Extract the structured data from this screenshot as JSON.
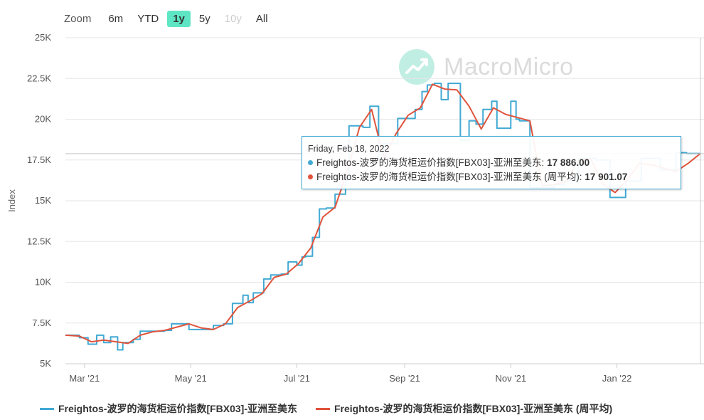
{
  "zoom": {
    "label": "Zoom",
    "options": [
      {
        "label": "6m",
        "state": "normal"
      },
      {
        "label": "YTD",
        "state": "normal"
      },
      {
        "label": "1y",
        "state": "active"
      },
      {
        "label": "5y",
        "state": "normal"
      },
      {
        "label": "10y",
        "state": "disabled"
      },
      {
        "label": "All",
        "state": "normal"
      }
    ]
  },
  "watermark": {
    "text": "MacroMicro"
  },
  "tooltip": {
    "date": "Friday, Feb 18, 2022",
    "rows": [
      {
        "name": "Freightos-波罗的海货柜运价指数[FBX03]-亚洲至美东",
        "value": "17 886.00",
        "color": "#41a9d3"
      },
      {
        "name": "Freightos-波罗的海货柜运价指数[FBX03]-亚洲至美东 (周平均)",
        "value": "17 901.07",
        "color": "#e0533c"
      }
    ]
  },
  "chart_data": {
    "type": "line",
    "title": "",
    "xlabel": "",
    "ylabel": "Index",
    "xlim": [
      "2021-02-18",
      "2022-02-18"
    ],
    "ylim": [
      5000,
      25000
    ],
    "grid": true,
    "legend_position": "bottom",
    "x_ticks": [
      {
        "date": "2021-03-01",
        "label": "Mar '21"
      },
      {
        "date": "2021-05-01",
        "label": "May '21"
      },
      {
        "date": "2021-07-01",
        "label": "Jul '21"
      },
      {
        "date": "2021-09-01",
        "label": "Sep '21"
      },
      {
        "date": "2021-11-01",
        "label": "Nov '21"
      },
      {
        "date": "2022-01-01",
        "label": "Jan '22"
      }
    ],
    "y_ticks": [
      {
        "value": 5000,
        "label": "5K"
      },
      {
        "value": 7500,
        "label": "7.5K"
      },
      {
        "value": 10000,
        "label": "10K"
      },
      {
        "value": 12500,
        "label": "12.5K"
      },
      {
        "value": 15000,
        "label": "15K"
      },
      {
        "value": 17500,
        "label": "17.5K"
      },
      {
        "value": 20000,
        "label": "20K"
      },
      {
        "value": 22500,
        "label": "22.5K"
      },
      {
        "value": 25000,
        "label": "25K"
      }
    ],
    "series": [
      {
        "name": "Freightos-波罗的海货柜运价指数[FBX03]-亚洲至美东",
        "color": "#41a9d3",
        "step": true,
        "points": [
          [
            "2021-02-18",
            6750
          ],
          [
            "2021-02-26",
            6600
          ],
          [
            "2021-03-03",
            6200
          ],
          [
            "2021-03-08",
            6750
          ],
          [
            "2021-03-12",
            6300
          ],
          [
            "2021-03-16",
            6650
          ],
          [
            "2021-03-20",
            5850
          ],
          [
            "2021-03-23",
            6300
          ],
          [
            "2021-03-29",
            6500
          ],
          [
            "2021-04-02",
            7000
          ],
          [
            "2021-04-16",
            7050
          ],
          [
            "2021-04-20",
            7450
          ],
          [
            "2021-04-30",
            7100
          ],
          [
            "2021-05-10",
            7100
          ],
          [
            "2021-05-14",
            7350
          ],
          [
            "2021-05-20",
            7450
          ],
          [
            "2021-05-25",
            8700
          ],
          [
            "2021-05-31",
            9200
          ],
          [
            "2021-06-03",
            8750
          ],
          [
            "2021-06-06",
            9350
          ],
          [
            "2021-06-12",
            10200
          ],
          [
            "2021-06-16",
            10450
          ],
          [
            "2021-06-22",
            10500
          ],
          [
            "2021-06-26",
            11250
          ],
          [
            "2021-07-01",
            11050
          ],
          [
            "2021-07-04",
            11550
          ],
          [
            "2021-07-06",
            11600
          ],
          [
            "2021-07-10",
            12750
          ],
          [
            "2021-07-14",
            14500
          ],
          [
            "2021-07-18",
            14550
          ],
          [
            "2021-07-23",
            15400
          ],
          [
            "2021-07-29",
            16250
          ],
          [
            "2021-07-31",
            19600
          ],
          [
            "2021-08-08",
            19500
          ],
          [
            "2021-08-12",
            20800
          ],
          [
            "2021-08-17",
            17500
          ],
          [
            "2021-08-20",
            18500
          ],
          [
            "2021-08-28",
            20050
          ],
          [
            "2021-09-07",
            20600
          ],
          [
            "2021-09-11",
            21700
          ],
          [
            "2021-09-14",
            22100
          ],
          [
            "2021-09-18",
            22200
          ],
          [
            "2021-09-22",
            21200
          ],
          [
            "2021-09-26",
            22200
          ],
          [
            "2021-10-03",
            18700
          ],
          [
            "2021-10-08",
            19900
          ],
          [
            "2021-10-12",
            19700
          ],
          [
            "2021-10-16",
            20600
          ],
          [
            "2021-10-21",
            21100
          ],
          [
            "2021-10-24",
            19450
          ],
          [
            "2021-11-01",
            21100
          ],
          [
            "2021-11-04",
            20000
          ],
          [
            "2021-11-06",
            19900
          ],
          [
            "2021-11-12",
            15800
          ],
          [
            "2021-11-26",
            16000
          ],
          [
            "2021-12-02",
            16200
          ],
          [
            "2021-12-10",
            17600
          ],
          [
            "2021-12-20",
            17500
          ],
          [
            "2021-12-28",
            15200
          ],
          [
            "2022-01-06",
            16200
          ],
          [
            "2022-01-15",
            17600
          ],
          [
            "2022-01-26",
            16900
          ],
          [
            "2022-02-04",
            17950
          ],
          [
            "2022-02-10",
            17900
          ],
          [
            "2022-02-18",
            17886
          ]
        ]
      },
      {
        "name": "Freightos-波罗的海货柜运价指数[FBX03]-亚洲至美东 (周平均)",
        "color": "#e0533c",
        "step": false,
        "points": [
          [
            "2021-02-18",
            6750
          ],
          [
            "2021-02-26",
            6700
          ],
          [
            "2021-03-05",
            6350
          ],
          [
            "2021-03-12",
            6450
          ],
          [
            "2021-03-19",
            6350
          ],
          [
            "2021-03-26",
            6250
          ],
          [
            "2021-04-02",
            6750
          ],
          [
            "2021-04-09",
            6950
          ],
          [
            "2021-04-16",
            7050
          ],
          [
            "2021-04-23",
            7250
          ],
          [
            "2021-04-30",
            7450
          ],
          [
            "2021-05-07",
            7200
          ],
          [
            "2021-05-14",
            7100
          ],
          [
            "2021-05-21",
            7450
          ],
          [
            "2021-05-28",
            8450
          ],
          [
            "2021-06-04",
            8850
          ],
          [
            "2021-06-11",
            9300
          ],
          [
            "2021-06-18",
            10300
          ],
          [
            "2021-06-25",
            10500
          ],
          [
            "2021-07-02",
            11150
          ],
          [
            "2021-07-09",
            12100
          ],
          [
            "2021-07-16",
            14000
          ],
          [
            "2021-07-23",
            14600
          ],
          [
            "2021-07-30",
            16800
          ],
          [
            "2021-08-06",
            19500
          ],
          [
            "2021-08-13",
            20600
          ],
          [
            "2021-08-20",
            17600
          ],
          [
            "2021-08-27",
            19100
          ],
          [
            "2021-09-03",
            20250
          ],
          [
            "2021-09-10",
            20700
          ],
          [
            "2021-09-17",
            22150
          ],
          [
            "2021-09-24",
            21850
          ],
          [
            "2021-10-01",
            21800
          ],
          [
            "2021-10-08",
            20800
          ],
          [
            "2021-10-15",
            19400
          ],
          [
            "2021-10-22",
            20700
          ],
          [
            "2021-10-29",
            20300
          ],
          [
            "2021-11-05",
            20100
          ],
          [
            "2021-11-12",
            19900
          ],
          [
            "2021-11-19",
            15900
          ],
          [
            "2021-11-26",
            16000
          ],
          [
            "2021-12-03",
            16200
          ],
          [
            "2021-12-10",
            17500
          ],
          [
            "2021-12-17",
            17550
          ],
          [
            "2021-12-24",
            16000
          ],
          [
            "2021-12-31",
            15500
          ],
          [
            "2022-01-07",
            16300
          ],
          [
            "2022-01-14",
            17300
          ],
          [
            "2022-01-21",
            17200
          ],
          [
            "2022-01-28",
            17000
          ],
          [
            "2022-02-04",
            16800
          ],
          [
            "2022-02-11",
            17300
          ],
          [
            "2022-02-18",
            17901
          ]
        ]
      }
    ]
  }
}
